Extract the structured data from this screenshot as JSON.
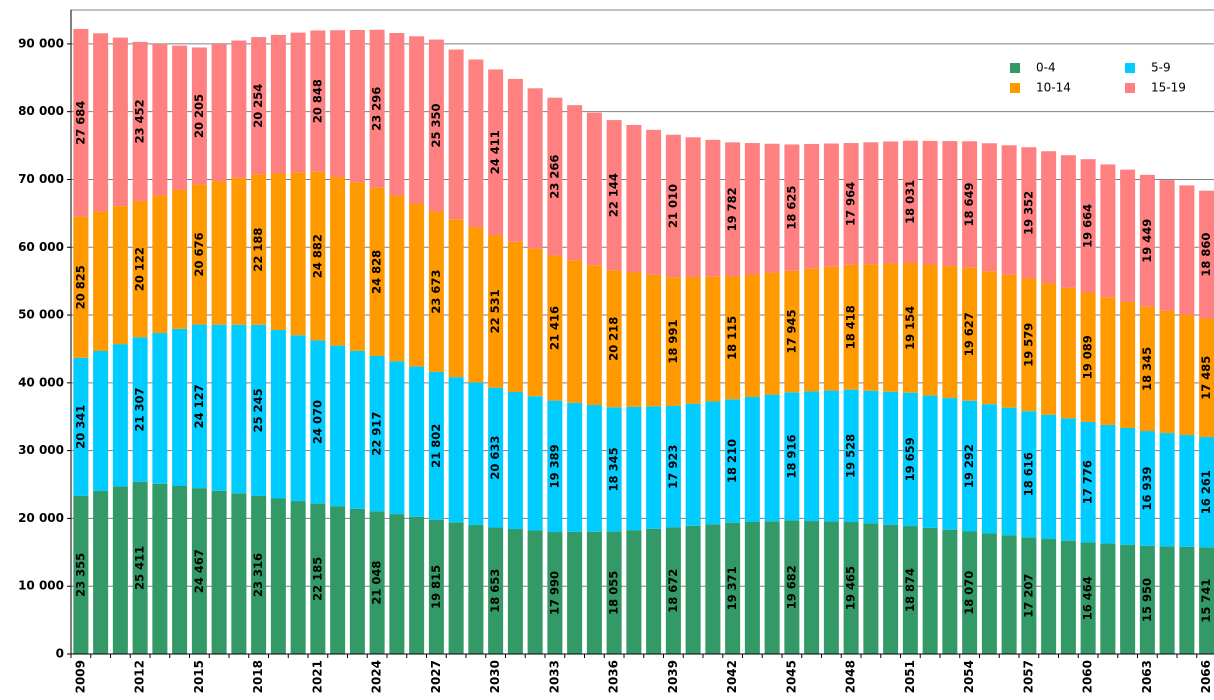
{
  "chart_data": {
    "type": "bar",
    "stacked": true,
    "categories": [
      "2009",
      null,
      null,
      "2012",
      null,
      null,
      "2015",
      null,
      null,
      "2018",
      null,
      null,
      "2021",
      null,
      null,
      "2024",
      null,
      null,
      "2027",
      null,
      null,
      "2030",
      null,
      null,
      "2033",
      null,
      null,
      "2036",
      null,
      null,
      "2039",
      null,
      null,
      "2042",
      null,
      null,
      "2045",
      null,
      null,
      "2048",
      null,
      null,
      "2051",
      null,
      null,
      "2054",
      null,
      null,
      "2057",
      null,
      null,
      "2060",
      null,
      null,
      "2063",
      null,
      null,
      "2066"
    ],
    "series": [
      {
        "name": "0-4",
        "color": "#339966",
        "values": [
          23355,
          24040,
          24726,
          25411,
          25096,
          24782,
          24467,
          24083,
          23700,
          23316,
          22939,
          22562,
          22185,
          21806,
          21427,
          21048,
          20637,
          20226,
          19815,
          19428,
          19040,
          18653,
          18432,
          18211,
          17990,
          18012,
          18033,
          18055,
          18261,
          18466,
          18672,
          18905,
          19138,
          19371,
          19475,
          19578,
          19682,
          19610,
          19537,
          19465,
          19268,
          19071,
          18874,
          18606,
          18338,
          18070,
          17782,
          17495,
          17207,
          16959,
          16712,
          16464,
          16293,
          16121,
          15950,
          15880,
          15811,
          15741
        ],
        "value_labels": [
          "23 355",
          null,
          null,
          "25 411",
          null,
          null,
          "24 467",
          null,
          null,
          "23 316",
          null,
          null,
          "22 185",
          null,
          null,
          "21 048",
          null,
          null,
          "19 815",
          null,
          null,
          "18 653",
          null,
          null,
          "17 990",
          null,
          null,
          "18 055",
          null,
          null,
          "18 672",
          null,
          null,
          "19 371",
          null,
          null,
          "19 682",
          null,
          null,
          "19 465",
          null,
          null,
          "18 874",
          null,
          null,
          "18 070",
          null,
          null,
          "17 207",
          null,
          null,
          "16 464",
          null,
          null,
          "15 950",
          null,
          null,
          "15 741"
        ]
      },
      {
        "name": "5-9",
        "color": "#00ccff",
        "values": [
          20341,
          20663,
          20985,
          21307,
          22247,
          23187,
          24127,
          24500,
          24872,
          25245,
          24853,
          24462,
          24070,
          23686,
          23301,
          22917,
          22545,
          22174,
          21802,
          21412,
          21023,
          20633,
          20218,
          19804,
          19389,
          19041,
          18693,
          18345,
          18204,
          18064,
          17923,
          18019,
          18114,
          18210,
          18445,
          18681,
          18916,
          19120,
          19324,
          19528,
          19572,
          19615,
          19659,
          19537,
          19414,
          19292,
          19067,
          18841,
          18616,
          18336,
          18056,
          17776,
          17497,
          17218,
          16939,
          16713,
          16487,
          16261
        ],
        "value_labels": [
          "20 341",
          null,
          null,
          "21 307",
          null,
          null,
          "24 127",
          null,
          null,
          "25 245",
          null,
          null,
          "24 070",
          null,
          null,
          "22 917",
          null,
          null,
          "21 802",
          null,
          null,
          "20 633",
          null,
          null,
          "19 389",
          null,
          null,
          "18 345",
          null,
          null,
          "17 923",
          null,
          null,
          "18 210",
          null,
          null,
          "18 916",
          null,
          null,
          "19 528",
          null,
          null,
          "19 659",
          null,
          null,
          "19 292",
          null,
          null,
          "18 616",
          null,
          null,
          "17 776",
          null,
          null,
          "16 939",
          null,
          null,
          "16 261"
        ]
      },
      {
        "name": "10-14",
        "color": "#ff9900",
        "values": [
          20825,
          20591,
          20356,
          20122,
          20307,
          20491,
          20676,
          21180,
          21684,
          22188,
          23086,
          23984,
          24882,
          24864,
          24846,
          24828,
          24443,
          24058,
          23673,
          23292,
          22912,
          22531,
          22159,
          21788,
          21416,
          21017,
          20617,
          20218,
          19809,
          19400,
          18991,
          18699,
          18407,
          18115,
          18058,
          18002,
          17945,
          18103,
          18260,
          18418,
          18663,
          18909,
          19154,
          19312,
          19469,
          19627,
          19611,
          19595,
          19579,
          19416,
          19252,
          19089,
          18841,
          18593,
          18345,
          18058,
          17772,
          17485
        ],
        "value_labels": [
          "20 825",
          null,
          null,
          "20 122",
          null,
          null,
          "20 676",
          null,
          null,
          "22 188",
          null,
          null,
          "24 882",
          null,
          null,
          "24 828",
          null,
          null,
          "23 673",
          null,
          null,
          "22 531",
          null,
          null,
          "21 416",
          null,
          null,
          "20 218",
          null,
          null,
          "18 991",
          null,
          null,
          "18 115",
          null,
          null,
          "17 945",
          null,
          null,
          "18 418",
          null,
          null,
          "19 154",
          null,
          null,
          "19 627",
          null,
          null,
          "19 579",
          null,
          null,
          "19 089",
          null,
          null,
          "18 345",
          null,
          null,
          "17 485"
        ]
      },
      {
        "name": "15-19",
        "color": "#ff8080",
        "values": [
          27684,
          26273,
          24863,
          23452,
          22370,
          21287,
          20205,
          20221,
          20238,
          20254,
          20452,
          20650,
          20848,
          21664,
          22480,
          23296,
          23981,
          24665,
          25350,
          25037,
          24724,
          24411,
          24029,
          23648,
          23266,
          22892,
          22518,
          22144,
          21766,
          21388,
          21010,
          20601,
          20191,
          19782,
          19396,
          19011,
          18625,
          18405,
          18184,
          17964,
          17986,
          18009,
          18031,
          18237,
          18443,
          18649,
          18883,
          19118,
          19352,
          19456,
          19560,
          19664,
          19592,
          19521,
          19449,
          19253,
          19056,
          18860
        ],
        "value_labels": [
          "27 684",
          null,
          null,
          "23 452",
          null,
          null,
          "20 205",
          null,
          null,
          "20 254",
          null,
          null,
          "20 848",
          null,
          null,
          "23 296",
          null,
          null,
          "25 350",
          null,
          null,
          "24 411",
          null,
          null,
          "23 266",
          null,
          null,
          "22 144",
          null,
          null,
          "21 010",
          null,
          null,
          "19 782",
          null,
          null,
          "18 625",
          null,
          null,
          "17 964",
          null,
          null,
          "18 031",
          null,
          null,
          "18 649",
          null,
          null,
          "19 352",
          null,
          null,
          "19 664",
          null,
          null,
          "19 449",
          null,
          null,
          "18 860"
        ]
      }
    ],
    "ylim": [
      0,
      95000
    ],
    "yticks": [
      0,
      {
        "value": 10000,
        "label": "10 000"
      },
      {
        "value": 20000,
        "label": "20 000"
      },
      {
        "value": 30000,
        "label": "30 000"
      },
      {
        "value": 40000,
        "label": "40 000"
      },
      {
        "value": 50000,
        "label": "50 000"
      },
      {
        "value": 60000,
        "label": "60 000"
      },
      {
        "value": 70000,
        "label": "70 000"
      },
      {
        "value": 80000,
        "label": "80 000"
      },
      {
        "value": 90000,
        "label": "90 000"
      }
    ],
    "grid": true,
    "legend": "upper right"
  }
}
